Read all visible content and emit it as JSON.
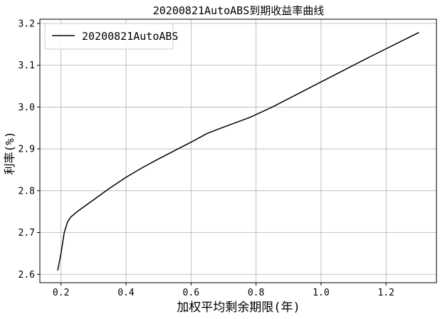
{
  "chart_data": {
    "type": "line",
    "title": "20200821AutoABS到期收益率曲线",
    "xlabel": "加权平均剩余期限(年)",
    "ylabel": "利率(%)",
    "xlim": [
      0.135,
      1.355
    ],
    "ylim": [
      2.58,
      3.21
    ],
    "xticks": [
      0.2,
      0.4,
      0.6,
      0.8,
      1.0,
      1.2
    ],
    "xtick_labels": [
      "0.2",
      "0.4",
      "0.6",
      "0.8",
      "1.0",
      "1.2"
    ],
    "yticks": [
      2.6,
      2.7,
      2.8,
      2.9,
      3.0,
      3.1,
      3.2
    ],
    "ytick_labels": [
      "2.6",
      "2.7",
      "2.8",
      "2.9",
      "3.0",
      "3.1",
      "3.2"
    ],
    "grid": true,
    "legend": "upper left",
    "series": [
      {
        "name": "20200821AutoABS",
        "color": "#000000",
        "x": [
          0.19,
          0.2,
          0.21,
          0.22,
          0.23,
          0.25,
          0.3,
          0.35,
          0.4,
          0.45,
          0.5,
          0.55,
          0.6,
          0.65,
          0.7,
          0.78,
          0.85,
          0.95,
          1.05,
          1.15,
          1.3
        ],
        "y": [
          2.61,
          2.65,
          2.7,
          2.725,
          2.737,
          2.75,
          2.778,
          2.806,
          2.832,
          2.855,
          2.876,
          2.896,
          2.916,
          2.937,
          2.952,
          2.975,
          3.0,
          3.04,
          3.08,
          3.12,
          3.178
        ]
      }
    ]
  }
}
